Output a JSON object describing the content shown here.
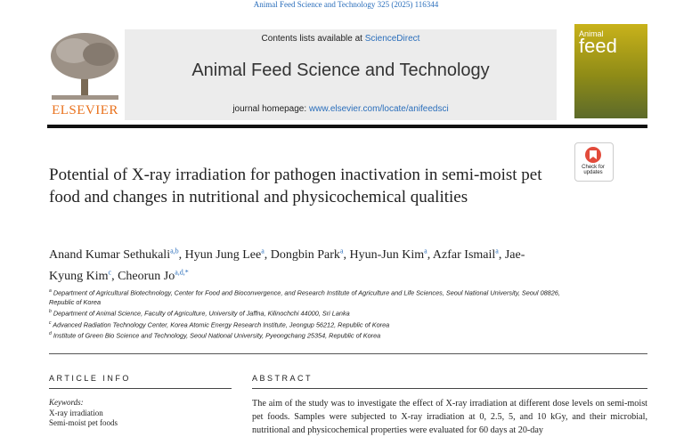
{
  "journal_ref": "Animal Feed Science and Technology 325 (2025) 116344",
  "header": {
    "contents_prefix": "Contents lists available at",
    "contents_link": "ScienceDirect",
    "journal_title": "Animal Feed Science and Technology",
    "homepage_prefix": "journal homepage:",
    "homepage_link": "www.elsevier.com/locate/anifeedsci",
    "publisher": "ELSEVIER",
    "cover_title": [
      "Animal",
      "feed"
    ],
    "badge": [
      "Check for",
      "updates"
    ]
  },
  "title": "Potential of X-ray irradiation for pathogen inactivation in semi-moist pet food and changes in nutritional and physicochemical qualities",
  "authors": [
    {
      "name": "Anand Kumar Sethukali",
      "affil": "a,b"
    },
    {
      "name": "Hyun Jung Lee",
      "affil": "a"
    },
    {
      "name": "Dongbin Park",
      "affil": "a"
    },
    {
      "name": "Hyun-Jun Kim",
      "affil": "a"
    },
    {
      "name": "Azfar Ismail",
      "affil": "a"
    },
    {
      "name": "Jae-Kyung Kim",
      "affil": "c"
    },
    {
      "name": "Cheorun Jo",
      "affil": "a,d,*"
    }
  ],
  "affiliations": [
    {
      "letter": "a",
      "text": "Department of Agricultural Biotechnology, Center for Food and Bioconvergence, and Research Institute of Agriculture and Life Sciences, Seoul National University, Seoul 08826, Republic of Korea"
    },
    {
      "letter": "b",
      "text": "Department of Animal Science, Faculty of Agriculture, University of Jaffna, Kilinochchi 44000, Sri Lanka"
    },
    {
      "letter": "c",
      "text": "Advanced Radiation Technology Center, Korea Atomic Energy Research Institute, Jeongup 56212, Republic of Korea"
    },
    {
      "letter": "d",
      "text": "Institute of Green Bio Science and Technology, Seoul National University, Pyeongchang 25354, Republic of Korea"
    }
  ],
  "article_info": {
    "heading": "ARTICLE INFO",
    "keywords_label": "Keywords:",
    "keywords": [
      "X-ray irradiation",
      "Semi-moist pet foods"
    ]
  },
  "abstract": {
    "heading": "ABSTRACT",
    "text": "The aim of the study was to investigate the effect of X-ray irradiation at different dose levels on semi-moist pet foods. Samples were subjected to X-ray irradiation at 0, 2.5, 5, and 10 kGy, and their microbial, nutritional and physicochemical properties were evaluated for 60 days at 20-day"
  }
}
